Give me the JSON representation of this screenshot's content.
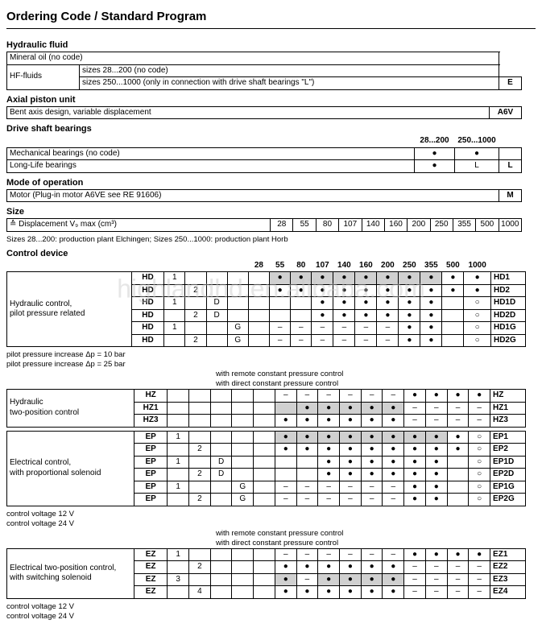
{
  "title": "Ordering Code / Standard Program",
  "hydraulic_fluid": {
    "title": "Hydraulic fluid",
    "r1": "Mineral oil (no code)",
    "r2a": "HF-fluids",
    "r2b": "sizes  28...200 (no code)",
    "r2c": "sizes 250...1000 (only in connection with drive shaft bearings \"L\")",
    "code": "E"
  },
  "axial": {
    "title": "Axial piston unit",
    "r1": "Bent axis design, variable displacement",
    "code": "A6V"
  },
  "drive": {
    "title": "Drive shaft bearings",
    "h1": "28...200",
    "h2": "250...1000",
    "r1": "Mechanical bearings (no code)",
    "r2": "Long-Life bearings",
    "code": "L"
  },
  "mode": {
    "title": "Mode of operation",
    "r1": "Motor (Plug-in motor A6VE see RE 91606)",
    "code": "M"
  },
  "size": {
    "title": "Size",
    "r1": "≙ Displacement V₉ max (cm³)",
    "vals": [
      "28",
      "55",
      "80",
      "107",
      "140",
      "160",
      "200",
      "250",
      "355",
      "500",
      "1000"
    ],
    "foot": "Sizes 28...200: production plant Elchingen; Sizes 250...1000: production plant Horb"
  },
  "ctrl": {
    "title": "Control device",
    "heads": [
      "28",
      "55",
      "80",
      "107",
      "140",
      "160",
      "200",
      "250",
      "355",
      "500",
      "1000"
    ],
    "rows": [
      {
        "n": "Hydraulic control,\npilot pressure related",
        "c": "HD",
        "a": "1",
        "b": "",
        "d": "",
        "g": "",
        "m": [
          "",
          "d",
          "d",
          "d",
          "d",
          "d",
          "d",
          "d",
          "d",
          "d",
          "d"
        ],
        "sh": [
          2,
          3,
          4,
          5,
          6,
          7,
          8,
          9
        ],
        "e": "HD1"
      },
      {
        "n": "",
        "c": "HD",
        "a": "",
        "b": "2",
        "d": "",
        "g": "",
        "m": [
          "",
          "d",
          "d",
          "d",
          "d",
          "d",
          "d",
          "d",
          "d",
          "d",
          "d"
        ],
        "sh": [],
        "e": "HD2"
      },
      {
        "n": "",
        "c": "HD",
        "a": "1",
        "b": "",
        "d": "D",
        "g": "",
        "m": [
          "",
          "",
          "",
          "d",
          "d",
          "d",
          "d",
          "d",
          "d",
          "",
          "c"
        ],
        "sh": [],
        "e": "HD1D"
      },
      {
        "n": "",
        "c": "HD",
        "a": "",
        "b": "2",
        "d": "D",
        "g": "",
        "m": [
          "",
          "",
          "",
          "d",
          "d",
          "d",
          "d",
          "d",
          "d",
          "",
          "c"
        ],
        "sh": [],
        "e": "HD2D"
      },
      {
        "n": "",
        "c": "HD",
        "a": "1",
        "b": "",
        "d": "",
        "g": "G",
        "m": [
          "",
          "h",
          "h",
          "h",
          "h",
          "h",
          "h",
          "d",
          "d",
          "",
          "c"
        ],
        "sh": [],
        "e": "HD1G"
      },
      {
        "n": "",
        "c": "HD",
        "a": "",
        "b": "2",
        "d": "",
        "g": "G",
        "m": [
          "",
          "h",
          "h",
          "h",
          "h",
          "h",
          "h",
          "d",
          "d",
          "",
          "c"
        ],
        "sh": [],
        "e": "HD2G"
      }
    ],
    "press1": "pilot pressure increase Δp = 10 bar",
    "press2": "pilot pressure increase Δp = 25 bar",
    "note1": "with remote constant pressure control",
    "note2": "with direct constant pressure control",
    "rowsHZ": [
      {
        "n": "Hydraulic\ntwo-position control",
        "c": "HZ",
        "a": "",
        "b": "",
        "d": "",
        "g": "",
        "m": [
          "",
          "h",
          "h",
          "h",
          "h",
          "h",
          "h",
          "d",
          "d",
          "d",
          "d"
        ],
        "sh": [],
        "e": "HZ"
      },
      {
        "n": "",
        "c": "HZ1",
        "a": "",
        "b": "",
        "d": "",
        "g": "",
        "m": [
          "",
          "",
          "d",
          "d",
          "d",
          "d",
          "d",
          "h",
          "h",
          "h",
          "h"
        ],
        "sh": [
          2,
          3,
          4,
          5,
          6,
          7
        ],
        "e": "HZ1"
      },
      {
        "n": "",
        "c": "HZ3",
        "a": "",
        "b": "",
        "d": "",
        "g": "",
        "m": [
          "",
          "d",
          "d",
          "d",
          "d",
          "d",
          "d",
          "h",
          "h",
          "h",
          "h"
        ],
        "sh": [],
        "e": "HZ3"
      }
    ],
    "rowsEP": [
      {
        "n": "Electrical control,\nwith proportional solenoid",
        "c": "EP",
        "a": "1",
        "b": "",
        "d": "",
        "g": "",
        "m": [
          "",
          "d",
          "d",
          "d",
          "d",
          "d",
          "d",
          "d",
          "d",
          "d",
          "c"
        ],
        "sh": [
          2,
          3,
          4,
          5,
          6,
          7,
          8,
          9
        ],
        "e": "EP1"
      },
      {
        "n": "",
        "c": "EP",
        "a": "",
        "b": "2",
        "d": "",
        "g": "",
        "m": [
          "",
          "d",
          "d",
          "d",
          "d",
          "d",
          "d",
          "d",
          "d",
          "d",
          "c"
        ],
        "sh": [],
        "e": "EP2"
      },
      {
        "n": "",
        "c": "EP",
        "a": "1",
        "b": "",
        "d": "D",
        "g": "",
        "m": [
          "",
          "",
          "",
          "d",
          "d",
          "d",
          "d",
          "d",
          "d",
          "",
          "c"
        ],
        "sh": [],
        "e": "EP1D"
      },
      {
        "n": "",
        "c": "EP",
        "a": "",
        "b": "2",
        "d": "D",
        "g": "",
        "m": [
          "",
          "",
          "",
          "d",
          "d",
          "d",
          "d",
          "d",
          "d",
          "",
          "c"
        ],
        "sh": [],
        "e": "EP2D"
      },
      {
        "n": "",
        "c": "EP",
        "a": "1",
        "b": "",
        "d": "",
        "g": "G",
        "m": [
          "",
          "h",
          "h",
          "h",
          "h",
          "h",
          "h",
          "d",
          "d",
          "",
          "c"
        ],
        "sh": [],
        "e": "EP1G"
      },
      {
        "n": "",
        "c": "EP",
        "a": "",
        "b": "2",
        "d": "",
        "g": "G",
        "m": [
          "",
          "h",
          "h",
          "h",
          "h",
          "h",
          "h",
          "d",
          "d",
          "",
          "c"
        ],
        "sh": [],
        "e": "EP2G"
      }
    ],
    "volt1": "control voltage 12 V",
    "volt2": "control voltage 24 V",
    "rowsEZ": [
      {
        "n": "Electrical two-position control,\nwith switching solenoid",
        "c": "EZ",
        "a": "1",
        "b": "",
        "d": "",
        "g": "",
        "m": [
          "",
          "h",
          "h",
          "h",
          "h",
          "h",
          "h",
          "d",
          "d",
          "d",
          "d"
        ],
        "sh": [],
        "e": "EZ1"
      },
      {
        "n": "",
        "c": "EZ",
        "a": "",
        "b": "2",
        "d": "",
        "g": "",
        "m": [
          "",
          "d",
          "d",
          "d",
          "d",
          "d",
          "d",
          "h",
          "h",
          "h",
          "h"
        ],
        "sh": [],
        "e": "EZ2"
      },
      {
        "n": "",
        "c": "EZ",
        "a": "3",
        "b": "",
        "d": "",
        "g": "",
        "m": [
          "",
          "d",
          "h",
          "d",
          "d",
          "d",
          "d",
          "h",
          "h",
          "h",
          "h"
        ],
        "sh": [
          2,
          4,
          5,
          6,
          7
        ],
        "e": "EZ3"
      },
      {
        "n": "",
        "c": "EZ",
        "a": "",
        "b": "4",
        "d": "",
        "g": "",
        "m": [
          "",
          "d",
          "d",
          "d",
          "d",
          "d",
          "d",
          "h",
          "h",
          "h",
          "h"
        ],
        "sh": [],
        "e": "EZ4"
      }
    ]
  },
  "watermark": "highlandhd.en.alibaba.com"
}
